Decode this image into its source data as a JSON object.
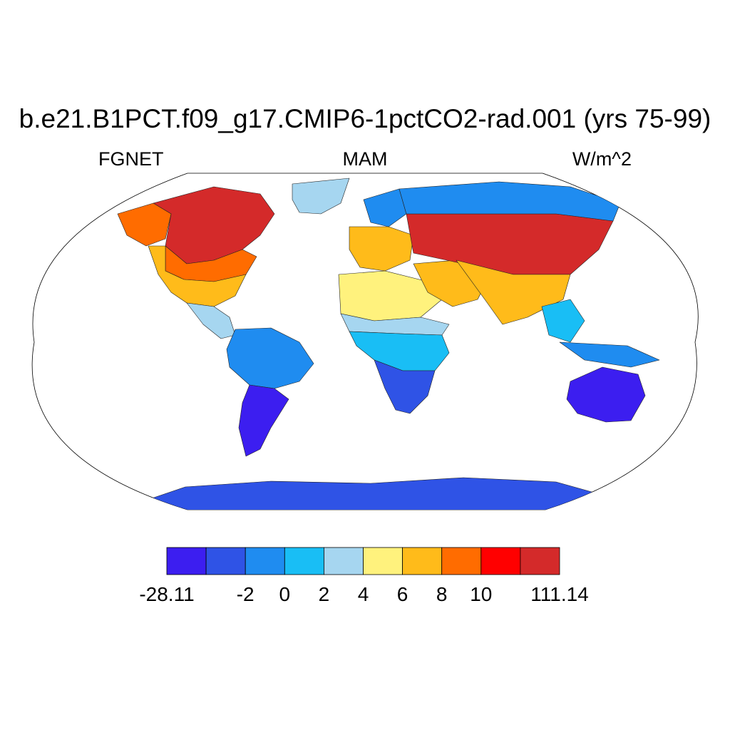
{
  "title": "b.e21.B1PCT.f09_g17.CMIP6-1pctCO2-rad.001 (yrs 75-99)",
  "left_label": "FGNET",
  "center_label": "MAM",
  "right_label": "W/m^2",
  "map": {
    "projection": "robinson",
    "ocean_fill": "#ffffff"
  },
  "colorbar": {
    "colors": [
      "#3c1ef0",
      "#2f53e6",
      "#1f8cf0",
      "#19bef5",
      "#a6d6f0",
      "#fff27d",
      "#ffbb1a",
      "#ff6c00",
      "#ff0000",
      "#d42a2a"
    ],
    "labels": [
      "-28.11",
      "-2",
      "0",
      "2",
      "4",
      "6",
      "8",
      "10",
      "111.14"
    ],
    "label_boundaries": [
      0,
      2,
      3,
      4,
      5,
      6,
      7,
      8,
      10
    ]
  },
  "regions": [
    {
      "name": "north-america-north",
      "color": "#d42a2a"
    },
    {
      "name": "north-america-central",
      "color": "#ff6c00"
    },
    {
      "name": "north-america-south",
      "color": "#ffbb1a"
    },
    {
      "name": "alaska",
      "color": "#ff6c00"
    },
    {
      "name": "greenland",
      "color": "#a6d6f0"
    },
    {
      "name": "central-america",
      "color": "#a6d6f0"
    },
    {
      "name": "south-america-north",
      "color": "#1f8cf0"
    },
    {
      "name": "south-america-south",
      "color": "#3c1ef0"
    },
    {
      "name": "europe",
      "color": "#ffbb1a"
    },
    {
      "name": "scandinavia",
      "color": "#1f8cf0"
    },
    {
      "name": "north-africa",
      "color": "#fff27d"
    },
    {
      "name": "sahel",
      "color": "#a6d6f0"
    },
    {
      "name": "central-africa",
      "color": "#19bef5"
    },
    {
      "name": "southern-africa",
      "color": "#2f53e6"
    },
    {
      "name": "middle-east",
      "color": "#ffbb1a"
    },
    {
      "name": "russia-central-asia",
      "color": "#d42a2a"
    },
    {
      "name": "siberia-north",
      "color": "#1f8cf0"
    },
    {
      "name": "south-asia",
      "color": "#ffbb1a"
    },
    {
      "name": "southeast-asia",
      "color": "#19bef5"
    },
    {
      "name": "indonesia",
      "color": "#1f8cf0"
    },
    {
      "name": "australia",
      "color": "#3c1ef0"
    },
    {
      "name": "antarctica",
      "color": "#2f53e6"
    }
  ]
}
